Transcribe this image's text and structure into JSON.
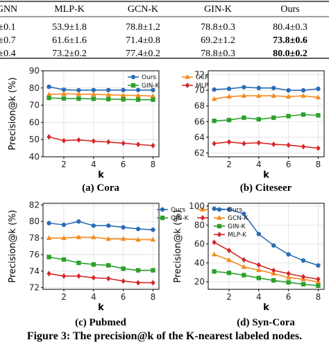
{
  "table": {
    "headers": [
      "GNN",
      "MLP-K",
      "GCN-K",
      "GIN-K",
      "Ours"
    ],
    "rows": [
      [
        "±0.1",
        "53.9±1.8",
        "78.8±1.2",
        "78.8±0.3",
        "80.4±0.3"
      ],
      [
        "±0.7",
        "61.6±1.6",
        "71.4±0.8",
        "69.2±1.2",
        "73.8±0.6"
      ],
      [
        "±0.4",
        "73.2±0.2",
        "77.4±0.2",
        "78.8±0.3",
        "80.0±0.2"
      ]
    ],
    "bold_last_col_rows": [
      1,
      2
    ]
  },
  "colors": {
    "Ours": "#2b6db5",
    "GCN-K": "#f58a1f",
    "GIN-K": "#2ca02c",
    "MLP-K": "#d62728"
  },
  "figure_caption": "Figure 3: The precision@k of the K-nearest labeled nodes.",
  "chart_data": [
    {
      "type": "line",
      "subtitle": "(a) Cora",
      "xlabel": "k",
      "ylabel": "Precision@k (%)",
      "x": [
        1,
        2,
        3,
        4,
        5,
        6,
        7,
        8
      ],
      "xticks": [
        2,
        4,
        6,
        8
      ],
      "ylim": [
        40,
        90
      ],
      "yticks": [
        40,
        50,
        60,
        70,
        80,
        90
      ],
      "grid": true,
      "legend": "top, two columns",
      "series": [
        {
          "name": "Ours",
          "marker": "circle",
          "values": [
            80.7,
            79.0,
            78.7,
            78.8,
            78.8,
            78.8,
            78.8,
            78.8
          ]
        },
        {
          "name": "GCN-K",
          "marker": "triangle",
          "values": [
            76.2,
            76.6,
            76.4,
            76.3,
            76.0,
            75.8,
            75.6,
            75.3
          ]
        },
        {
          "name": "GIN-K",
          "marker": "square",
          "values": [
            74.2,
            73.9,
            73.8,
            73.7,
            73.5,
            73.4,
            73.2,
            73.2
          ]
        },
        {
          "name": "MLP-K",
          "marker": "diamond",
          "values": [
            51.6,
            49.4,
            49.8,
            49.1,
            48.6,
            47.9,
            47.2,
            46.5
          ]
        }
      ]
    },
    {
      "type": "line",
      "subtitle": "(b) Citeseer",
      "xlabel": "k",
      "ylabel": "",
      "x": [
        1,
        2,
        3,
        4,
        5,
        6,
        7,
        8
      ],
      "xticks": [
        2,
        4,
        6,
        8
      ],
      "ylim": [
        61.5,
        72.5
      ],
      "yticks": [
        62,
        64,
        66,
        68,
        70,
        72
      ],
      "grid": true,
      "legend": "top, two columns",
      "series": [
        {
          "name": "Ours",
          "marker": "circle",
          "values": [
            70.1,
            70.2,
            70.4,
            70.3,
            70.3,
            70.0,
            70.0,
            70.2
          ]
        },
        {
          "name": "GCN-K",
          "marker": "triangle",
          "values": [
            68.9,
            69.2,
            69.3,
            69.3,
            69.3,
            69.2,
            69.3,
            69.1
          ]
        },
        {
          "name": "GIN-K",
          "marker": "square",
          "values": [
            66.1,
            66.2,
            66.5,
            66.3,
            66.5,
            66.7,
            66.9,
            66.8
          ]
        },
        {
          "name": "MLP-K",
          "marker": "diamond",
          "values": [
            63.2,
            63.4,
            63.2,
            63.3,
            63.1,
            63.0,
            62.8,
            62.6
          ]
        }
      ]
    },
    {
      "type": "line",
      "subtitle": "(c) Pubmed",
      "xlabel": "k",
      "ylabel": "Precision@k (%)",
      "x": [
        1,
        2,
        3,
        4,
        5,
        6,
        7,
        8
      ],
      "xticks": [
        2,
        4,
        6,
        8
      ],
      "ylim": [
        71.8,
        82.2
      ],
      "yticks": [
        72,
        74,
        76,
        78,
        80,
        82
      ],
      "grid": true,
      "legend": "top-right, two columns",
      "series": [
        {
          "name": "Ours",
          "marker": "circle",
          "values": [
            79.8,
            79.6,
            80.0,
            79.5,
            79.5,
            79.3,
            79.1,
            79.0
          ]
        },
        {
          "name": "GCN-K",
          "marker": "triangle",
          "values": [
            78.0,
            78.0,
            78.1,
            78.1,
            77.9,
            77.9,
            77.8,
            77.8
          ]
        },
        {
          "name": "GIN-K",
          "marker": "square",
          "values": [
            75.7,
            75.4,
            75.0,
            74.8,
            74.7,
            74.3,
            74.1,
            74.1
          ]
        },
        {
          "name": "MLP-K",
          "marker": "diamond",
          "values": [
            73.7,
            73.4,
            73.4,
            73.2,
            73.1,
            72.8,
            72.6,
            72.6
          ]
        }
      ]
    },
    {
      "type": "line",
      "subtitle": "(d) Syn-Cora",
      "xlabel": "k",
      "ylabel": "Precision@k (%)",
      "x": [
        1,
        2,
        3,
        4,
        5,
        6,
        7,
        8
      ],
      "xticks": [
        2,
        4,
        6,
        8
      ],
      "ylim": [
        12,
        103
      ],
      "yticks": [
        20,
        40,
        60,
        80,
        100
      ],
      "grid": true,
      "legend": "upper-left, one column",
      "series": [
        {
          "name": "Ours",
          "marker": "circle",
          "values": [
            97.3,
            96.5,
            91.8,
            70.5,
            58.4,
            49.0,
            42.5,
            37.2
          ]
        },
        {
          "name": "GCN-K",
          "marker": "triangle",
          "values": [
            49.0,
            43.0,
            35.7,
            32.4,
            28.7,
            24.5,
            22.7,
            19.8
          ]
        },
        {
          "name": "GIN-K",
          "marker": "square",
          "values": [
            30.9,
            29.4,
            27.0,
            24.0,
            21.4,
            19.4,
            17.4,
            15.8
          ]
        },
        {
          "name": "MLP-K",
          "marker": "diamond",
          "values": [
            61.7,
            53.1,
            43.2,
            37.8,
            32.0,
            28.7,
            25.3,
            22.7
          ]
        }
      ]
    }
  ]
}
